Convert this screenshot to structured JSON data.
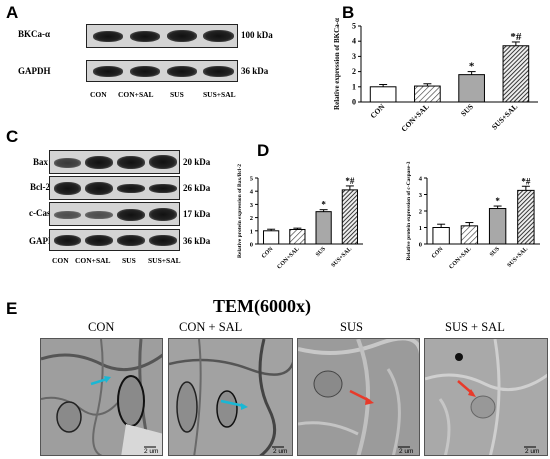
{
  "panels": {
    "a": "A",
    "b": "B",
    "c": "C",
    "d": "D",
    "e": "E"
  },
  "blot_a": {
    "rows": [
      {
        "label": "BKCa-α",
        "size": "100 kDa"
      },
      {
        "label": "GAPDH",
        "size": "36 kDa"
      }
    ],
    "lanes": [
      "CON",
      "CON+SAL",
      "SUS",
      "SUS+SAL"
    ]
  },
  "blot_c": {
    "rows": [
      {
        "label": "Bax",
        "size": "20 kDa"
      },
      {
        "label": "Bcl-2",
        "size": "26 kDa"
      },
      {
        "label": "c-Caspase-3",
        "size": "17 kDa"
      },
      {
        "label": "GAPDH",
        "size": "36 kDa"
      }
    ],
    "lanes": [
      "CON",
      "CON+SAL",
      "SUS",
      "SUS+SAL"
    ]
  },
  "chart_data": [
    {
      "type": "bar",
      "panel": "B",
      "categories": [
        "CON",
        "CON+SAL",
        "SUS",
        "SUS+SAL"
      ],
      "values": [
        1.0,
        1.05,
        1.8,
        3.7
      ],
      "errors": [
        0.15,
        0.15,
        0.2,
        0.25
      ],
      "ylabel": "Relative expression of BKCa-α",
      "ylim": [
        0,
        5
      ],
      "yticks": [
        0,
        1,
        2,
        3,
        4,
        5
      ],
      "annotations": [
        "",
        "",
        "*",
        "*#"
      ],
      "fills": [
        "white",
        "hatched",
        "gray",
        "hatched-dark"
      ]
    },
    {
      "type": "bar",
      "panel": "D-left",
      "categories": [
        "CON",
        "CON+SAL",
        "SUS",
        "SUS+SAL"
      ],
      "values": [
        1.0,
        1.1,
        2.45,
        4.1
      ],
      "errors": [
        0.12,
        0.1,
        0.15,
        0.3
      ],
      "ylabel": "Relative protein expression of Bax/Bcl-2",
      "ylim": [
        0,
        5
      ],
      "yticks": [
        0,
        1,
        2,
        3,
        4,
        5
      ],
      "annotations": [
        "",
        "",
        "*",
        "*#"
      ],
      "fills": [
        "white",
        "hatched",
        "gray",
        "hatched-dark"
      ]
    },
    {
      "type": "bar",
      "panel": "D-right",
      "categories": [
        "CON",
        "CON+SAL",
        "SUS",
        "SUS+SAL"
      ],
      "values": [
        1.0,
        1.1,
        2.15,
        3.25
      ],
      "errors": [
        0.2,
        0.2,
        0.15,
        0.25
      ],
      "ylabel": "Relative protein expression of c-Caspase-3",
      "ylim": [
        0,
        4
      ],
      "yticks": [
        0,
        1,
        2,
        3,
        4
      ],
      "annotations": [
        "",
        "",
        "*",
        "*#"
      ],
      "fills": [
        "white",
        "hatched",
        "gray",
        "hatched-dark"
      ]
    }
  ],
  "tem": {
    "title": "TEM(6000x)",
    "labels": [
      "CON",
      "CON + SAL",
      "SUS",
      "SUS + SAL"
    ],
    "scale": "2 um"
  }
}
